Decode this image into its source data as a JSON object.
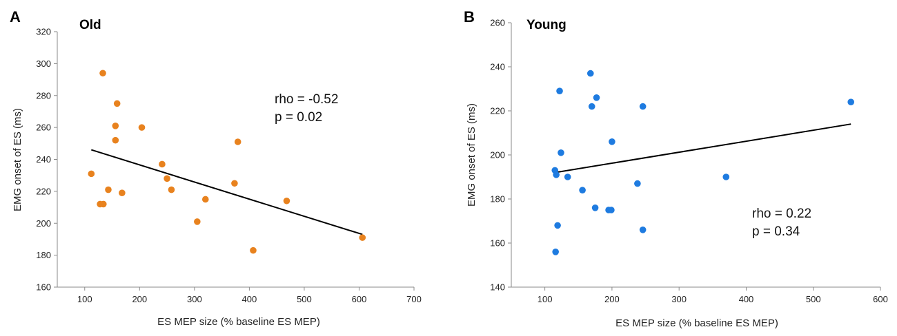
{
  "chart_data": [
    {
      "type": "scatter",
      "panel_label": "A",
      "title": "Old",
      "xlabel": "ES MEP size (% baseline ES MEP)",
      "ylabel": "EMG onset of ES (ms)",
      "xlim": [
        50,
        700
      ],
      "ylim": [
        160,
        320
      ],
      "xticks": [
        100,
        200,
        300,
        400,
        500,
        600,
        700
      ],
      "yticks": [
        160,
        180,
        200,
        220,
        240,
        260,
        280,
        300,
        320
      ],
      "grid": false,
      "marker_color": "#e8821e",
      "line_color": "#000000",
      "points": [
        {
          "x": 112,
          "y": 231
        },
        {
          "x": 128,
          "y": 212
        },
        {
          "x": 133,
          "y": 294
        },
        {
          "x": 134,
          "y": 212
        },
        {
          "x": 143,
          "y": 221
        },
        {
          "x": 156,
          "y": 261
        },
        {
          "x": 156,
          "y": 252
        },
        {
          "x": 159,
          "y": 275
        },
        {
          "x": 168,
          "y": 219
        },
        {
          "x": 204,
          "y": 260
        },
        {
          "x": 241,
          "y": 237
        },
        {
          "x": 250,
          "y": 228
        },
        {
          "x": 258,
          "y": 221
        },
        {
          "x": 305,
          "y": 201
        },
        {
          "x": 320,
          "y": 215
        },
        {
          "x": 373,
          "y": 225
        },
        {
          "x": 379,
          "y": 251
        },
        {
          "x": 407,
          "y": 183
        },
        {
          "x": 468,
          "y": 214
        },
        {
          "x": 606,
          "y": 191
        }
      ],
      "trendline": {
        "x1": 112,
        "y1": 246,
        "x2": 606,
        "y2": 193
      },
      "annotations": {
        "rho": "rho = -0.52",
        "p": "p = 0.02"
      }
    },
    {
      "type": "scatter",
      "panel_label": "B",
      "title": "Young",
      "xlabel": "ES MEP size (% baseline ES MEP)",
      "ylabel": "EMG onset of ES (ms)",
      "xlim": [
        50,
        600
      ],
      "ylim": [
        140,
        260
      ],
      "xticks": [
        100,
        200,
        300,
        400,
        500,
        600
      ],
      "yticks": [
        140,
        160,
        180,
        200,
        220,
        240,
        260
      ],
      "grid": false,
      "marker_color": "#1e7be0",
      "line_color": "#000000",
      "points": [
        {
          "x": 115,
          "y": 193
        },
        {
          "x": 116,
          "y": 156
        },
        {
          "x": 117,
          "y": 191
        },
        {
          "x": 119,
          "y": 168
        },
        {
          "x": 122,
          "y": 229
        },
        {
          "x": 124,
          "y": 201
        },
        {
          "x": 134,
          "y": 190
        },
        {
          "x": 156,
          "y": 184
        },
        {
          "x": 168,
          "y": 237
        },
        {
          "x": 170,
          "y": 222
        },
        {
          "x": 175,
          "y": 176
        },
        {
          "x": 177,
          "y": 226
        },
        {
          "x": 195,
          "y": 175
        },
        {
          "x": 199,
          "y": 175
        },
        {
          "x": 200,
          "y": 206
        },
        {
          "x": 238,
          "y": 187
        },
        {
          "x": 246,
          "y": 222
        },
        {
          "x": 246,
          "y": 166
        },
        {
          "x": 370,
          "y": 190
        },
        {
          "x": 556,
          "y": 224
        }
      ],
      "trendline": {
        "x1": 115,
        "y1": 192,
        "x2": 556,
        "y2": 214
      },
      "annotations": {
        "rho": "rho = 0.22",
        "p": "p = 0.34"
      }
    }
  ]
}
